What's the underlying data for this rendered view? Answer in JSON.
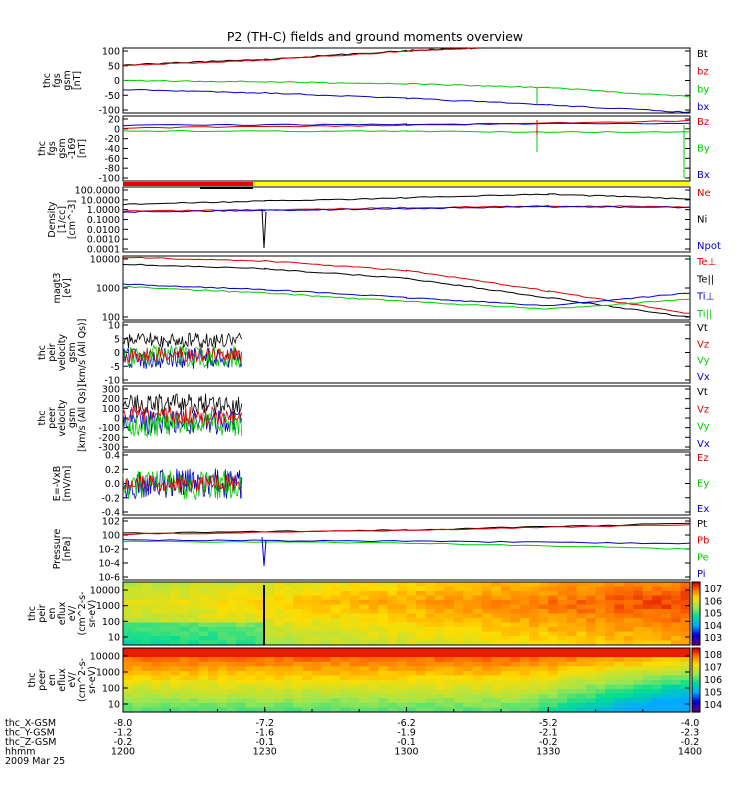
{
  "title": "P2 (TH-C) fields and ground moments overview",
  "panels": [
    {
      "id": "fgs",
      "ylabel": [
        "thc",
        "fgs",
        "gsm",
        "[nT]"
      ],
      "yticks": [
        "100",
        "50",
        "0",
        "-50",
        "-100"
      ],
      "legend": [
        {
          "text": "Bt",
          "color": "#000000"
        },
        {
          "text": "bz",
          "color": "#dd0000"
        },
        {
          "text": "by",
          "color": "#00cc00"
        },
        {
          "text": "bx",
          "color": "#0000cc"
        }
      ]
    },
    {
      "id": "fgs_cal",
      "ylabel": [
        "thc",
        "fgs",
        "gsm",
        "-169",
        "[nT]"
      ],
      "yticks": [
        "20",
        "0",
        "-20",
        "-40",
        "-60",
        "-80",
        "-100"
      ],
      "legend": [
        {
          "text": "Bz",
          "color": "#dd0000"
        },
        {
          "text": "By",
          "color": "#00cc00"
        },
        {
          "text": "Bx",
          "color": "#0000cc"
        }
      ]
    },
    {
      "id": "density",
      "ylabel": [
        "Density",
        "[1/cc]",
        "[cm^-3]"
      ],
      "yticks": [
        "100.0000",
        "10.0000",
        "1.0000",
        "0.1000",
        "0.0100",
        "0.0010",
        "0.0001"
      ],
      "legend": [
        {
          "text": "Ne",
          "color": "#dd0000"
        },
        {
          "text": "Ni",
          "color": "#000000"
        },
        {
          "text": "Npot",
          "color": "#0000cc"
        }
      ]
    },
    {
      "id": "temp",
      "ylabel": [
        "magt3",
        "[eV]"
      ],
      "yticks": [
        "10000",
        "1000",
        "100"
      ],
      "legend": [
        {
          "text": "Te⊥",
          "color": "#dd0000"
        },
        {
          "text": "Te||",
          "color": "#000000"
        },
        {
          "text": "Ti⊥",
          "color": "#0000cc"
        },
        {
          "text": "Ti||",
          "color": "#00cc00"
        }
      ]
    },
    {
      "id": "peir_vel",
      "ylabel": [
        "thc",
        "peir",
        "velocity",
        "gsm",
        "[km/s (All Qs)]"
      ],
      "yticks": [
        "10",
        "5",
        "0",
        "-5",
        "-10"
      ],
      "legend": [
        {
          "text": "Vt",
          "color": "#000000"
        },
        {
          "text": "Vz",
          "color": "#dd0000"
        },
        {
          "text": "Vy",
          "color": "#00cc00"
        },
        {
          "text": "Vx",
          "color": "#0000cc"
        }
      ]
    },
    {
      "id": "peer_vel",
      "ylabel": [
        "thc",
        "peer",
        "velocity",
        "gsm",
        "[km/s (All Qs)]"
      ],
      "yticks": [
        "300",
        "200",
        "100",
        "0",
        "-100",
        "-200",
        "-300"
      ],
      "legend": [
        {
          "text": "Vt",
          "color": "#000000"
        },
        {
          "text": "Vz",
          "color": "#dd0000"
        },
        {
          "text": "Vy",
          "color": "#00cc00"
        },
        {
          "text": "Vx",
          "color": "#0000cc"
        }
      ]
    },
    {
      "id": "efield",
      "ylabel": [
        "E=-VxB",
        "[mV/m]"
      ],
      "yticks": [
        "0.4",
        "0.2",
        "0.0",
        "-0.2",
        "-0.4"
      ],
      "legend": [
        {
          "text": "Ez",
          "color": "#dd0000"
        },
        {
          "text": "Ey",
          "color": "#00cc00"
        },
        {
          "text": "Ex",
          "color": "#0000cc"
        }
      ]
    },
    {
      "id": "pressure",
      "ylabel": [
        "Pressure",
        "[nPa]"
      ],
      "yticks": [
        "10^2",
        "10^0",
        "10^-2",
        "10^-4",
        "10^-6"
      ],
      "legend": [
        {
          "text": "Pt",
          "color": "#000000"
        },
        {
          "text": "Pb",
          "color": "#dd0000"
        },
        {
          "text": "Pe",
          "color": "#00cc00"
        },
        {
          "text": "Pi",
          "color": "#0000cc"
        }
      ]
    },
    {
      "id": "peir_eflux",
      "ylabel": [
        "thc",
        "peir",
        "en",
        "eflux",
        "eV/",
        "(cm^2-s-",
        "sr-eV)"
      ],
      "yticks": [
        "10000",
        "1000",
        "100",
        "10"
      ],
      "colorbar": [
        "10^7",
        "10^6",
        "10^5",
        "10^4",
        "10^3"
      ]
    },
    {
      "id": "peer_eflux",
      "ylabel": [
        "thc",
        "peer",
        "en",
        "eflux",
        "eV/",
        "(cm^2-s-",
        "sr-eV)"
      ],
      "yticks": [
        "10000",
        "1000",
        "100",
        "10"
      ],
      "colorbar": [
        "10^8",
        "10^7",
        "10^6",
        "10^5",
        "10^4"
      ]
    }
  ],
  "bottom_axis": {
    "rows": [
      {
        "label": "thc_X-GSM",
        "values": [
          "-8.0",
          "-7.2",
          "-6.2",
          "-5.2",
          "-4.0"
        ]
      },
      {
        "label": "thc_Y-GSM",
        "values": [
          "-1.2",
          "-1.6",
          "-1.9",
          "-2.1",
          "-2.3"
        ]
      },
      {
        "label": "thc_Z-GSM",
        "values": [
          "-0.2",
          "-0.1",
          "-0.1",
          "-0.2",
          "-0.2"
        ]
      },
      {
        "label": "hhmm",
        "values": [
          "1200",
          "1230",
          "1300",
          "1330",
          "1400"
        ]
      }
    ],
    "date": "2009 Mar 25"
  },
  "chart_data": [
    {
      "type": "line",
      "panel": "fgs",
      "x_unit": "hhmm",
      "xlim": [
        "1200",
        "1400"
      ],
      "ylim": [
        -100,
        100
      ],
      "series": [
        {
          "name": "Bt",
          "color": "#000000",
          "x": [
            "1200",
            "1230",
            "1300",
            "1315"
          ],
          "y": [
            48,
            65,
            92,
            100
          ]
        },
        {
          "name": "bz",
          "color": "#dd0000",
          "x": [
            "1200",
            "1230",
            "1300",
            "1315"
          ],
          "y": [
            46,
            63,
            90,
            100
          ]
        },
        {
          "name": "by",
          "color": "#00cc00",
          "x": [
            "1200",
            "1230",
            "1300",
            "1330",
            "1400"
          ],
          "y": [
            0,
            -4,
            -10,
            -22,
            -50
          ]
        },
        {
          "name": "bx",
          "color": "#0000cc",
          "x": [
            "1200",
            "1230",
            "1300",
            "1330",
            "1400"
          ],
          "y": [
            -28,
            -38,
            -55,
            -75,
            -98
          ]
        }
      ]
    },
    {
      "type": "line",
      "panel": "fgs_cal",
      "xlim": [
        "1200",
        "1400"
      ],
      "ylim": [
        -110,
        30
      ],
      "series": [
        {
          "name": "Bz",
          "color": "#dd0000",
          "x": [
            "1200",
            "1300",
            "1400"
          ],
          "y": [
            4,
            10,
            20
          ]
        },
        {
          "name": "By",
          "color": "#00cc00",
          "x": [
            "1200",
            "1300",
            "1400"
          ],
          "y": [
            -2,
            -3,
            -5
          ]
        },
        {
          "name": "Bx",
          "color": "#0000cc",
          "x": [
            "1200",
            "1300",
            "1400"
          ],
          "y": [
            10,
            12,
            14
          ]
        }
      ]
    },
    {
      "type": "line",
      "panel": "density",
      "scale": "log",
      "ylim": [
        0.0001,
        100
      ],
      "series": [
        {
          "name": "Ni",
          "color": "#000000",
          "x": [
            "1200",
            "1230",
            "1300",
            "1330",
            "1400"
          ],
          "y": [
            2.5,
            5,
            10,
            22,
            8
          ]
        },
        {
          "name": "Ne",
          "color": "#dd0000",
          "x": [
            "1200",
            "1230",
            "1300",
            "1330",
            "1400"
          ],
          "y": [
            0.6,
            0.8,
            1.2,
            1.8,
            1.5
          ]
        },
        {
          "name": "Npot",
          "color": "#0000cc",
          "x": [
            "1200",
            "1230",
            "1300",
            "1330",
            "1400"
          ],
          "y": [
            0.5,
            0.7,
            1.0,
            1.5,
            1.3
          ]
        }
      ]
    },
    {
      "type": "line",
      "panel": "temp",
      "scale": "log",
      "ylim": [
        100,
        10000
      ],
      "series": [
        {
          "name": "Te⊥",
          "color": "#dd0000",
          "x": [
            "1200",
            "1230",
            "1300",
            "1330",
            "1400"
          ],
          "y": [
            9000,
            7000,
            3500,
            800,
            160
          ]
        },
        {
          "name": "Te||",
          "color": "#000000",
          "x": [
            "1200",
            "1230",
            "1300",
            "1330",
            "1400"
          ],
          "y": [
            5500,
            4000,
            2000,
            500,
            120
          ]
        },
        {
          "name": "Ti⊥",
          "color": "#0000cc",
          "x": [
            "1200",
            "1230",
            "1300",
            "1330",
            "1400"
          ],
          "y": [
            1300,
            900,
            500,
            280,
            700
          ]
        },
        {
          "name": "Ti||",
          "color": "#00cc00",
          "x": [
            "1200",
            "1230",
            "1300",
            "1330",
            "1400"
          ],
          "y": [
            1100,
            700,
            380,
            220,
            450
          ]
        }
      ]
    },
    {
      "type": "line",
      "panel": "pressure",
      "scale": "log",
      "ylim": [
        1e-06,
        100
      ],
      "series": [
        {
          "name": "Pt",
          "color": "#000000",
          "x": [
            "1200",
            "1300",
            "1400"
          ],
          "y": [
            1,
            3,
            20
          ]
        },
        {
          "name": "Pb",
          "color": "#dd0000",
          "x": [
            "1200",
            "1300",
            "1400"
          ],
          "y": [
            0.8,
            2.5,
            15
          ]
        },
        {
          "name": "Pe",
          "color": "#00cc00",
          "x": [
            "1200",
            "1300",
            "1400"
          ],
          "y": [
            0.1,
            0.06,
            0.01
          ]
        },
        {
          "name": "Pi",
          "color": "#0000cc",
          "x": [
            "1200",
            "1300",
            "1400"
          ],
          "y": [
            0.15,
            0.1,
            0.05
          ]
        }
      ]
    }
  ]
}
